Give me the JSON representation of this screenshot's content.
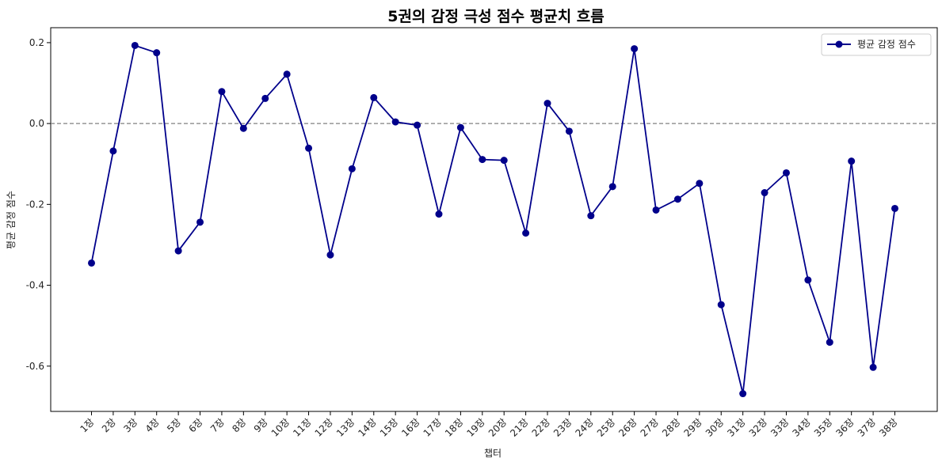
{
  "chart_data": {
    "type": "line",
    "title": "5권의 감정 극성 점수 평균치 흐름",
    "xlabel": "챕터",
    "ylabel": "평균 감정 점수",
    "categories": [
      "1장",
      "2장",
      "3장",
      "4장",
      "5장",
      "6장",
      "7장",
      "8장",
      "9장",
      "10장",
      "11장",
      "12장",
      "13장",
      "14장",
      "15장",
      "16장",
      "17장",
      "18장",
      "19장",
      "20장",
      "21장",
      "22장",
      "23장",
      "24장",
      "25장",
      "26장",
      "27장",
      "28장",
      "29장",
      "30장",
      "31장",
      "32장",
      "33장",
      "34장",
      "35장",
      "36장",
      "37장",
      "38장"
    ],
    "series": [
      {
        "name": "평균 감정 점수",
        "color": "#00008b",
        "marker": "circle",
        "values": [
          -0.345,
          -0.068,
          0.193,
          0.175,
          -0.315,
          -0.244,
          0.079,
          -0.012,
          0.062,
          0.122,
          -0.061,
          -0.325,
          -0.112,
          0.064,
          0.004,
          -0.004,
          -0.224,
          -0.01,
          -0.089,
          -0.091,
          -0.271,
          0.05,
          -0.019,
          -0.228,
          -0.156,
          0.185,
          -0.214,
          -0.187,
          -0.148,
          -0.448,
          -0.668,
          -0.171,
          -0.122,
          -0.387,
          -0.541,
          -0.093,
          -0.603,
          -0.21
        ]
      }
    ],
    "yticks": [
      0.2,
      0.0,
      -0.2,
      -0.4,
      -0.6
    ],
    "ytick_labels": [
      "0.2",
      "0.0",
      "-0.2",
      "-0.4",
      "-0.6"
    ],
    "ylim": [
      -0.712,
      0.237
    ],
    "reference_line": {
      "y": 0.0,
      "style": "dashed",
      "color": "#808080"
    },
    "grid": false,
    "legend": "top-right"
  }
}
